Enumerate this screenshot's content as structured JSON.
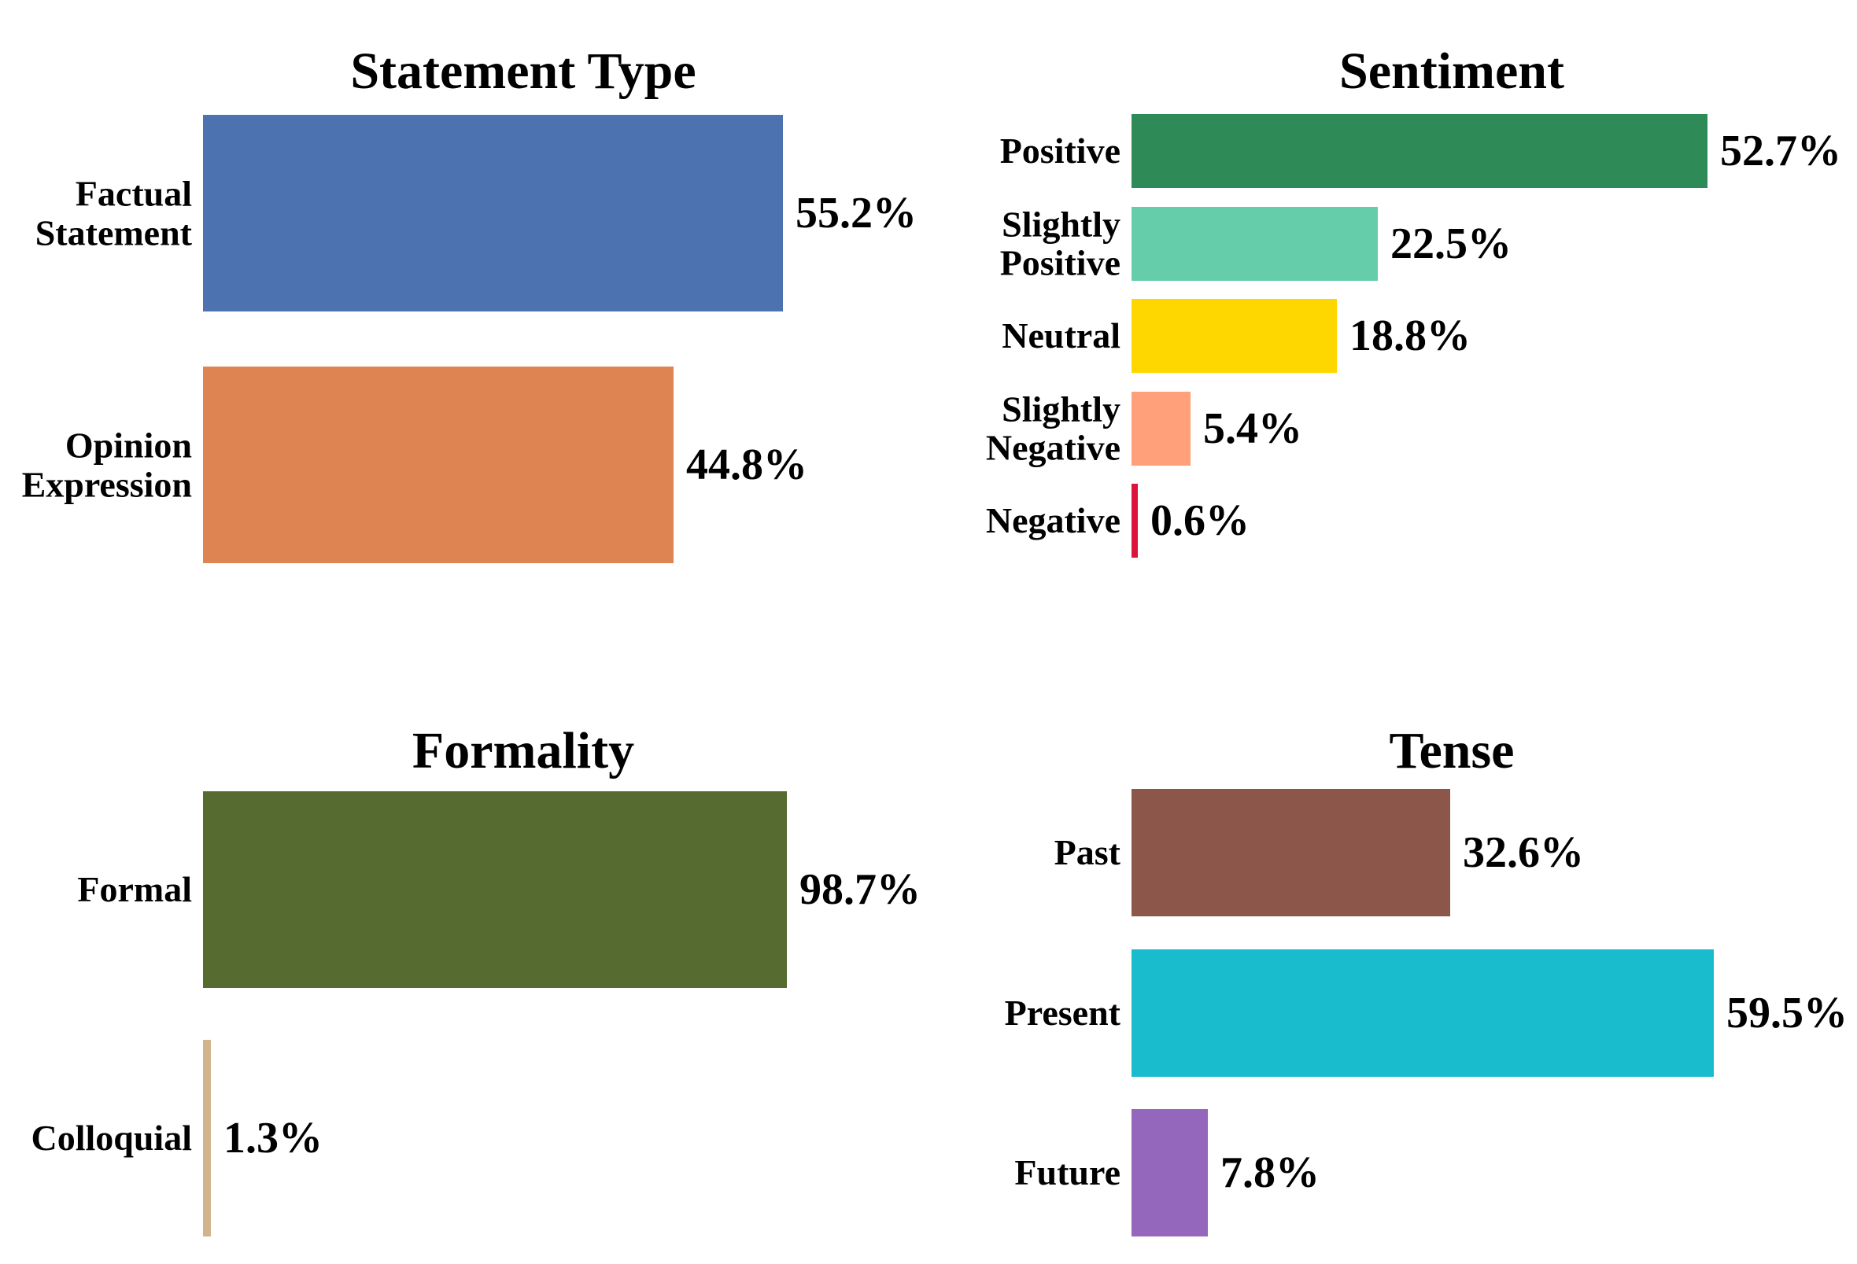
{
  "page": {
    "background": "#ffffff",
    "text_color": "#000000"
  },
  "chart_data": [
    {
      "id": "statement-type",
      "type": "bar",
      "orientation": "horizontal",
      "title": "Statement Type",
      "unit": "%",
      "axes_hidden": true,
      "grid": false,
      "legend": "none",
      "categories": [
        [
          "Factual",
          "Statement"
        ],
        [
          "Opinion",
          "Expression"
        ]
      ],
      "values": [
        55.2,
        44.8
      ],
      "value_labels": [
        "55.2%",
        "44.8%"
      ],
      "colors": [
        "#4c72b0",
        "#dd8452"
      ],
      "xlim": [
        0,
        58
      ]
    },
    {
      "id": "sentiment",
      "type": "bar",
      "orientation": "horizontal",
      "title": "Sentiment",
      "unit": "%",
      "axes_hidden": true,
      "grid": false,
      "legend": "none",
      "categories": [
        [
          "Positive"
        ],
        [
          "Slightly",
          "Positive"
        ],
        [
          "Neutral"
        ],
        [
          "Slightly",
          "Negative"
        ],
        [
          "Negative"
        ]
      ],
      "values": [
        52.7,
        22.5,
        18.8,
        5.4,
        0.6
      ],
      "value_labels": [
        "52.7%",
        "22.5%",
        "18.8%",
        "5.4%",
        "0.6%"
      ],
      "colors": [
        "#2e8b57",
        "#66cdaa",
        "#ffd700",
        "#ffa07a",
        "#dc143c"
      ],
      "xlim": [
        0,
        55
      ]
    },
    {
      "id": "formality",
      "type": "bar",
      "orientation": "horizontal",
      "title": "Formality",
      "unit": "%",
      "axes_hidden": true,
      "grid": false,
      "legend": "none",
      "categories": [
        [
          "Formal"
        ],
        [
          "Colloquial"
        ]
      ],
      "values": [
        98.7,
        1.3
      ],
      "value_labels": [
        "98.7%",
        "1.3%"
      ],
      "colors": [
        "#556b2f",
        "#d2b48c"
      ],
      "xlim": [
        0,
        104
      ]
    },
    {
      "id": "tense",
      "type": "bar",
      "orientation": "horizontal",
      "title": "Tense",
      "unit": "%",
      "axes_hidden": true,
      "grid": false,
      "legend": "none",
      "categories": [
        [
          "Past"
        ],
        [
          "Present"
        ],
        [
          "Future"
        ]
      ],
      "values": [
        32.6,
        59.5,
        7.8
      ],
      "value_labels": [
        "32.6%",
        "59.5%",
        "7.8%"
      ],
      "colors": [
        "#8c564b",
        "#18bccd",
        "#9467bd"
      ],
      "xlim": [
        0,
        63
      ]
    }
  ]
}
